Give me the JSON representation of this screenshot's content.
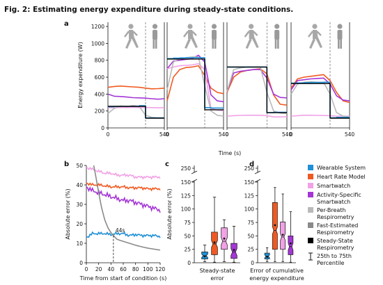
{
  "figure": {
    "title": "Fig. 2: Estimating energy expenditure during steady-state conditions.",
    "panel_labels": [
      "a",
      "b",
      "c",
      "d"
    ],
    "break_a_label": "44s"
  },
  "colors": {
    "Wearable System": "#1f8fd6",
    "Heart Rate Model": "#f05a22",
    "Smartwatch": "#f2a1e6",
    "Activity-Specific Smartwatch": "#a536d6",
    "Per-Breath Respirometry": "#b9b9b9",
    "Fast-Estimated Respirometry": "#8a8a8a",
    "Steady-State Respirometry": "#000000"
  },
  "legend": {
    "items": [
      {
        "lines": [
          "Wearable System"
        ],
        "color": "#1f8fd6"
      },
      {
        "lines": [
          "Heart Rate Model"
        ],
        "color": "#f05a22"
      },
      {
        "lines": [
          "Smartwatch"
        ],
        "color": "#f2a1e6"
      },
      {
        "lines": [
          "Activity-Specific",
          "Smartwatch"
        ],
        "color": "#a536d6"
      },
      {
        "lines": [
          "Per-Breath",
          "Respirometry"
        ],
        "color": "#b9b9b9"
      },
      {
        "lines": [
          "Fast-Estimated",
          "Respirometry"
        ],
        "color": "#8a8a8a"
      },
      {
        "lines": [
          "Steady-State",
          "Respirometry"
        ],
        "color": "#000000"
      }
    ],
    "percentile_label": [
      "25th to 75th",
      "Percentile"
    ]
  },
  "chart_data": [
    {
      "panel": "a",
      "type": "line",
      "ylabel": "Energy expenditure (W)",
      "xlabel": "Time (s)",
      "ylim": [
        0,
        1250
      ],
      "yticks": [
        0,
        200,
        400,
        600,
        800,
        1000,
        1200
      ],
      "xlim": [
        0,
        540
      ],
      "x_tick_labels": [
        "0",
        "540",
        "0",
        "540",
        "0",
        "540",
        "0",
        "540"
      ],
      "activities": [
        "walking",
        "running",
        "stair climbing",
        "cycling"
      ],
      "condition_change_s": 360,
      "x": [
        0,
        60,
        120,
        180,
        240,
        300,
        360,
        420,
        480,
        540
      ],
      "conditions": [
        {
          "activity": "walking",
          "series": [
            {
              "name": "Heart Rate Model",
              "values": [
                480,
                490,
                495,
                490,
                485,
                480,
                470,
                462,
                465,
                470
              ]
            },
            {
              "name": "Activity-Specific Smartwatch",
              "values": [
                400,
                375,
                372,
                365,
                358,
                355,
                352,
                345,
                340,
                345
              ]
            },
            {
              "name": "Smartwatch",
              "values": [
                240,
                238,
                242,
                240,
                244,
                240,
                242,
                240,
                238,
                240
              ]
            },
            {
              "name": "Per-Breath Respirometry",
              "values": [
                170,
                230,
                260,
                250,
                265,
                255,
                150,
                125,
                120,
                122
              ]
            },
            {
              "name": "Wearable System",
              "values": [
                250,
                255,
                255,
                255,
                255,
                262,
                118,
                118,
                118,
                118
              ]
            },
            {
              "name": "Steady-State Respirometry",
              "values": [
                255,
                255,
                255,
                255,
                255,
                255,
                115,
                115,
                115,
                115
              ]
            }
          ]
        },
        {
          "activity": "running",
          "series": [
            {
              "name": "Heart Rate Model",
              "values": [
                320,
                600,
                690,
                715,
                720,
                735,
                620,
                470,
                420,
                405
              ]
            },
            {
              "name": "Activity-Specific Smartwatch",
              "values": [
                700,
                790,
                800,
                810,
                820,
                860,
                780,
                390,
                320,
                310
              ]
            },
            {
              "name": "Smartwatch",
              "values": [
                700,
                720,
                735,
                740,
                745,
                760,
                690,
                230,
                210,
                205
              ]
            },
            {
              "name": "Per-Breath Respirometry",
              "values": [
                450,
                780,
                820,
                830,
                840,
                840,
                500,
                200,
                150,
                140
              ]
            },
            {
              "name": "Wearable System",
              "values": [
                820,
                825,
                828,
                830,
                830,
                830,
                240,
                235,
                235,
                235
              ]
            },
            {
              "name": "Steady-State Respirometry",
              "values": [
                815,
                815,
                815,
                815,
                815,
                815,
                215,
                215,
                215,
                215
              ]
            }
          ]
        },
        {
          "activity": "stair climbing",
          "series": [
            {
              "name": "Heart Rate Model",
              "values": [
                420,
                600,
                660,
                680,
                690,
                700,
                640,
                390,
                280,
                270
              ]
            },
            {
              "name": "Activity-Specific Smartwatch",
              "values": [
                430,
                650,
                670,
                680,
                690,
                690,
                590,
                400,
                360,
                355
              ]
            },
            {
              "name": "Smartwatch",
              "values": [
                140,
                145,
                148,
                150,
                150,
                150,
                145,
                130,
                130,
                132
              ]
            },
            {
              "name": "Per-Breath Respirometry",
              "values": [
                430,
                690,
                710,
                720,
                720,
                720,
                420,
                200,
                175,
                170
              ]
            },
            {
              "name": "Wearable System",
              "values": [
                720,
                720,
                720,
                720,
                720,
                720,
                180,
                185,
                185,
                185
              ]
            },
            {
              "name": "Steady-State Respirometry",
              "values": [
                720,
                720,
                720,
                720,
                720,
                720,
                180,
                180,
                180,
                180
              ]
            }
          ]
        },
        {
          "activity": "cycling",
          "series": [
            {
              "name": "Heart Rate Model",
              "values": [
                470,
                580,
                600,
                610,
                620,
                630,
                560,
                420,
                320,
                300
              ]
            },
            {
              "name": "Activity-Specific Smartwatch",
              "values": [
                450,
                560,
                570,
                580,
                585,
                590,
                520,
                380,
                330,
                320
              ]
            },
            {
              "name": "Smartwatch",
              "values": [
                140,
                145,
                150,
                150,
                148,
                146,
                145,
                140,
                140,
                140
              ]
            },
            {
              "name": "Per-Breath Respirometry",
              "values": [
                400,
                520,
                540,
                545,
                540,
                540,
                400,
                180,
                140,
                130
              ]
            },
            {
              "name": "Wearable System",
              "values": [
                530,
                532,
                535,
                538,
                538,
                540,
                120,
                125,
                125,
                125
              ]
            },
            {
              "name": "Steady-State Respirometry",
              "values": [
                525,
                525,
                525,
                525,
                525,
                525,
                115,
                115,
                115,
                115
              ]
            }
          ]
        }
      ]
    },
    {
      "panel": "b",
      "type": "line",
      "ylabel": "Absolute error (%)",
      "xlabel": "Time from start of condition (s)",
      "xlim": [
        0,
        120
      ],
      "ylim": [
        0,
        50
      ],
      "xticks": [
        0,
        20,
        40,
        60,
        80,
        100,
        120
      ],
      "yticks": [
        0,
        10,
        20,
        30,
        40,
        50
      ],
      "marker_x": 44,
      "x": [
        0,
        10,
        20,
        30,
        40,
        50,
        60,
        70,
        80,
        90,
        100,
        110,
        120
      ],
      "series": [
        {
          "name": "Smartwatch",
          "values": [
            49,
            48,
            47,
            46,
            46,
            45,
            45,
            45,
            44,
            44,
            44,
            44,
            44
          ]
        },
        {
          "name": "Heart Rate Model",
          "values": [
            41,
            40,
            40,
            39.5,
            39,
            39,
            39,
            38.5,
            38.5,
            38.5,
            38,
            38,
            38
          ]
        },
        {
          "name": "Activity-Specific Smartwatch",
          "values": [
            39,
            37,
            36,
            35,
            34,
            33,
            32,
            32,
            31,
            30,
            29,
            28,
            27
          ]
        },
        {
          "name": "Wearable System",
          "values": [
            13,
            15,
            15,
            15,
            14.5,
            15,
            15,
            14,
            14.5,
            14,
            14,
            14,
            13.5
          ]
        },
        {
          "name": "Fast-Estimated Respirometry",
          "x": [
            12,
            15,
            20,
            25,
            30,
            35,
            40,
            44,
            50,
            60,
            70,
            80,
            90,
            100,
            110,
            120
          ],
          "values": [
            50,
            45,
            36,
            28,
            22,
            18,
            15.5,
            14,
            12,
            11,
            10,
            9,
            8.2,
            7.5,
            7,
            6.5
          ]
        }
      ]
    },
    {
      "panel": "c",
      "type": "box",
      "category_label": [
        "Steady-state",
        "error"
      ],
      "ylabel": "Absolute error (%)",
      "yticks": [
        0,
        25,
        50,
        75,
        100,
        125,
        150,
        250
      ],
      "broken_axis": {
        "lower": [
          0,
          150
        ],
        "upper_tick": 250
      },
      "boxes": [
        {
          "name": "Wearable System",
          "min": 2,
          "q1": 7,
          "median": 13,
          "mean": 12,
          "q3": 20,
          "max": 33
        },
        {
          "name": "Heart Rate Model",
          "min": 1,
          "q1": 15,
          "median": 35,
          "mean": 38,
          "q3": 57,
          "max": 122
        },
        {
          "name": "Smartwatch",
          "min": 2,
          "q1": 25,
          "median": 40,
          "mean": 45,
          "q3": 65,
          "max": 80
        },
        {
          "name": "Activity-Specific Smartwatch",
          "min": 1,
          "q1": 8,
          "median": 20,
          "mean": 24,
          "q3": 36,
          "max": 68
        }
      ]
    },
    {
      "panel": "d",
      "type": "box",
      "category_label": [
        "Error of cumulative",
        "energy expenditure"
      ],
      "ylabel": "",
      "yticks": [
        0,
        25,
        50,
        75,
        100,
        125,
        150,
        250
      ],
      "broken_axis": {
        "lower": [
          0,
          150
        ],
        "upper_tick": 250
      },
      "boxes": [
        {
          "name": "Wearable System",
          "min": 2,
          "q1": 7,
          "median": 12,
          "mean": 11,
          "q3": 18,
          "max": 28
        },
        {
          "name": "Heart Rate Model",
          "min": 2,
          "q1": 25,
          "median": 60,
          "mean": 70,
          "q3": 112,
          "max": 140
        },
        {
          "name": "Smartwatch",
          "min": 2,
          "q1": 25,
          "median": 48,
          "mean": 52,
          "q3": 76,
          "max": 128
        },
        {
          "name": "Activity-Specific Smartwatch",
          "min": 1,
          "q1": 15,
          "median": 30,
          "mean": 36,
          "q3": 50,
          "max": 95
        }
      ]
    }
  ]
}
